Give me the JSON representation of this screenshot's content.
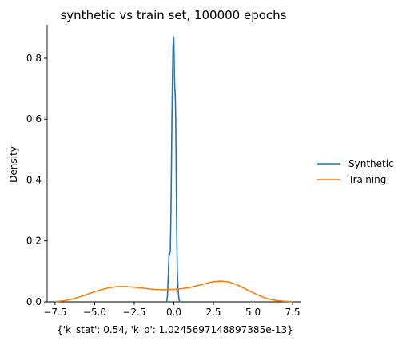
{
  "chart_data": {
    "type": "line",
    "title": "synthetic vs train set, 100000 epochs",
    "xlabel": "{'k_stat': 0.54, 'k_p': 1.0245697148897385e-13}",
    "ylabel": "Density",
    "xlim": [
      -8.0,
      8.0
    ],
    "ylim": [
      0,
      0.91
    ],
    "xticks": [
      -7.5,
      -5.0,
      -2.5,
      0.0,
      2.5,
      5.0,
      7.5
    ],
    "xtick_labels": [
      "−7.5",
      "−5.0",
      "−2.5",
      "0.0",
      "2.5",
      "5.0",
      "7.5"
    ],
    "yticks": [
      0.0,
      0.2,
      0.4,
      0.6,
      0.8
    ],
    "ytick_labels": [
      "0.0",
      "0.2",
      "0.4",
      "0.6",
      "0.8"
    ],
    "grid": false,
    "legend_position": "right, outside plot",
    "series": [
      {
        "name": "Synthetic",
        "color": "#1f77b4",
        "x": [
          -0.45,
          -0.4,
          -0.34,
          -0.3,
          -0.27,
          -0.22,
          -0.18,
          -0.15,
          -0.12,
          -0.08,
          -0.05,
          -0.02,
          0.0,
          0.02,
          0.04,
          0.06,
          0.08,
          0.1,
          0.12,
          0.15,
          0.18,
          0.22,
          0.27,
          0.32,
          0.37
        ],
        "y": [
          0.0,
          0.02,
          0.1,
          0.16,
          0.155,
          0.17,
          0.3,
          0.45,
          0.6,
          0.75,
          0.84,
          0.87,
          0.86,
          0.8,
          0.74,
          0.7,
          0.69,
          0.66,
          0.6,
          0.42,
          0.24,
          0.1,
          0.04,
          0.01,
          0.0
        ]
      },
      {
        "name": "Training",
        "color": "#ff7f0e",
        "x": [
          -7.5,
          -7.0,
          -6.5,
          -6.0,
          -5.5,
          -5.0,
          -4.5,
          -4.0,
          -3.5,
          -3.0,
          -2.5,
          -2.0,
          -1.5,
          -1.0,
          -0.5,
          0.0,
          0.5,
          1.0,
          1.5,
          2.0,
          2.5,
          3.0,
          3.5,
          4.0,
          4.5,
          5.0,
          5.5,
          6.0,
          6.5,
          7.0,
          7.5
        ],
        "y": [
          0.001,
          0.003,
          0.008,
          0.015,
          0.024,
          0.033,
          0.041,
          0.047,
          0.05,
          0.05,
          0.048,
          0.045,
          0.042,
          0.04,
          0.04,
          0.041,
          0.043,
          0.047,
          0.053,
          0.06,
          0.066,
          0.068,
          0.065,
          0.056,
          0.043,
          0.03,
          0.018,
          0.009,
          0.004,
          0.002,
          0.001
        ]
      }
    ]
  }
}
